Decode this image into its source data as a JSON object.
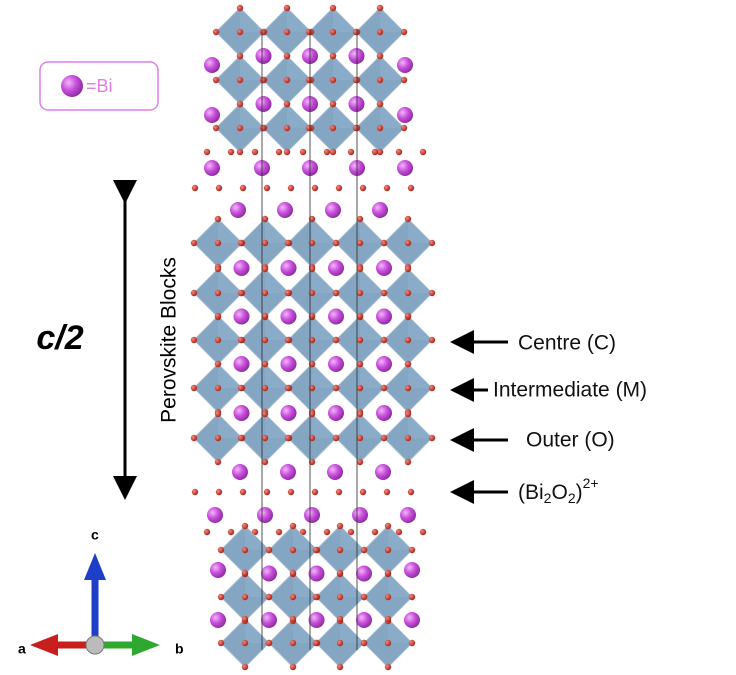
{
  "legend": {
    "label": "=Bi"
  },
  "side": {
    "block_label": "Perovskite Blocks",
    "c_half": "c/2"
  },
  "labels": {
    "centre": "Centre (C)",
    "intermediate": "Intermediate (M)",
    "outer": "Outer (O)",
    "bi2o2": [
      "(Bi",
      "2",
      "O",
      "2",
      ")",
      "2+"
    ]
  },
  "axes": {
    "a": "a",
    "b": "b",
    "c": "c"
  }
}
